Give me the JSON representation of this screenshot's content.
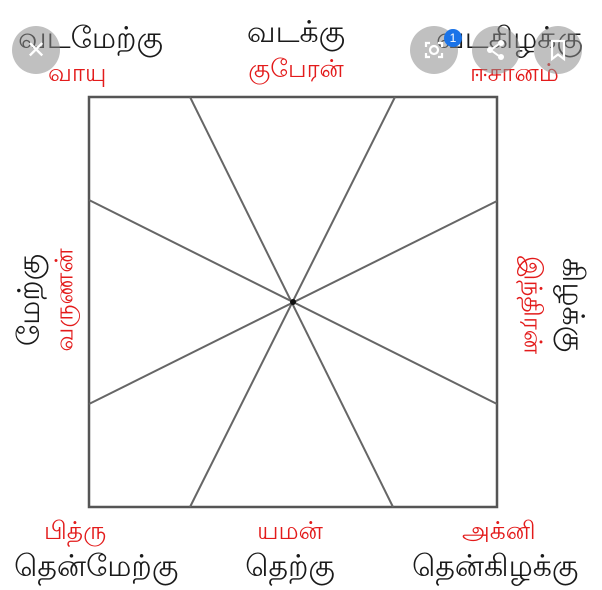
{
  "directions": {
    "north": {
      "name": "வடக்கு",
      "deity": "குபேரன்"
    },
    "northwest": {
      "name": "வடமேற்கு",
      "deity": "வாயு"
    },
    "northeast": {
      "name": "வடகிழக்கு",
      "deity": "ஈசானம்"
    },
    "west": {
      "name": "மேற்கு",
      "deity": "வருணன்"
    },
    "east": {
      "name": "கிழக்கு",
      "deity": "இந்திரன்"
    },
    "southwest": {
      "name": "தென்மேற்கு",
      "deity": "பித்ரு"
    },
    "south": {
      "name": "தெற்கு",
      "deity": "யமன்"
    },
    "southeast": {
      "name": "தென்கிழக்கு",
      "deity": "அக்னி"
    }
  },
  "overlay": {
    "close_icon": "close-icon",
    "lens_icon": "lens-icon",
    "badge_count": "1",
    "share_icon": "share-icon",
    "bookmark_icon": "bookmark-icon",
    "button_bg": "#8c8c8c",
    "badge_color": "#1a73e8"
  },
  "colors": {
    "direction_text": "#1a1a1a",
    "deity_text": "#e31b1b",
    "line": "#555555"
  }
}
